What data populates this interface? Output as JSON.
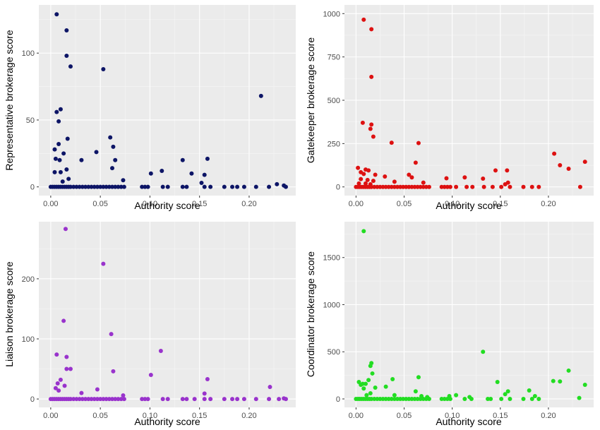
{
  "chart_data": [
    {
      "type": "scatter",
      "xlabel": "Authority score",
      "ylabel": "Representative brokerage score",
      "xlim": [
        -0.012,
        0.247
      ],
      "ylim": [
        -6.5,
        136
      ],
      "xticks": [
        "0.00",
        "0.05",
        "0.10",
        "0.15",
        "0.20"
      ],
      "xtick_values": [
        0,
        0.05,
        0.1,
        0.15,
        0.2
      ],
      "yticks": [
        "0",
        "50",
        "100"
      ],
      "ytick_values": [
        0,
        50,
        100
      ],
      "grid": true,
      "background": "#ebebeb",
      "color": "#0d1566",
      "points": [
        [
          0.006,
          129
        ],
        [
          0.016,
          117
        ],
        [
          0.016,
          98
        ],
        [
          0.02,
          90
        ],
        [
          0.053,
          88
        ],
        [
          0.212,
          68
        ],
        [
          0.01,
          58
        ],
        [
          0.006,
          56
        ],
        [
          0.008,
          49
        ],
        [
          0.017,
          36
        ],
        [
          0.06,
          37
        ],
        [
          0.063,
          30
        ],
        [
          0.008,
          32
        ],
        [
          0.004,
          28
        ],
        [
          0.013,
          25
        ],
        [
          0.046,
          26
        ],
        [
          0.005,
          21
        ],
        [
          0.009,
          20
        ],
        [
          0.031,
          20
        ],
        [
          0.065,
          20
        ],
        [
          0.133,
          20
        ],
        [
          0.158,
          21
        ],
        [
          0.016,
          13
        ],
        [
          0.004,
          11
        ],
        [
          0.01,
          11
        ],
        [
          0.112,
          12
        ],
        [
          0.062,
          14
        ],
        [
          0.101,
          10
        ],
        [
          0.142,
          10
        ],
        [
          0.155,
          9
        ],
        [
          0.018,
          6
        ],
        [
          0.012,
          4
        ],
        [
          0.073,
          5
        ],
        [
          0.152,
          3
        ],
        [
          0.235,
          1
        ],
        [
          0.228,
          2
        ],
        [
          0.0,
          0
        ],
        [
          0.002,
          0
        ],
        [
          0.004,
          0
        ],
        [
          0.006,
          0
        ],
        [
          0.008,
          0
        ],
        [
          0.01,
          0
        ],
        [
          0.012,
          0
        ],
        [
          0.014,
          0
        ],
        [
          0.016,
          0
        ],
        [
          0.018,
          0
        ],
        [
          0.02,
          0
        ],
        [
          0.023,
          0
        ],
        [
          0.026,
          0
        ],
        [
          0.029,
          0
        ],
        [
          0.032,
          0
        ],
        [
          0.035,
          0
        ],
        [
          0.038,
          0
        ],
        [
          0.041,
          0
        ],
        [
          0.044,
          0
        ],
        [
          0.047,
          0
        ],
        [
          0.05,
          0
        ],
        [
          0.053,
          0
        ],
        [
          0.056,
          0
        ],
        [
          0.059,
          0
        ],
        [
          0.062,
          0
        ],
        [
          0.065,
          0
        ],
        [
          0.068,
          0
        ],
        [
          0.071,
          0
        ],
        [
          0.074,
          0
        ],
        [
          0.092,
          0
        ],
        [
          0.095,
          0
        ],
        [
          0.098,
          0
        ],
        [
          0.113,
          0
        ],
        [
          0.118,
          0
        ],
        [
          0.133,
          0
        ],
        [
          0.137,
          0
        ],
        [
          0.155,
          0
        ],
        [
          0.161,
          0
        ],
        [
          0.175,
          0
        ],
        [
          0.183,
          0
        ],
        [
          0.188,
          0
        ],
        [
          0.195,
          0
        ],
        [
          0.207,
          0
        ],
        [
          0.22,
          0
        ],
        [
          0.237,
          0
        ]
      ]
    },
    {
      "type": "scatter",
      "xlabel": "Authority score",
      "ylabel": "Gatekeeper brokerage score",
      "xlim": [
        -0.012,
        0.247
      ],
      "ylim": [
        -50,
        1050
      ],
      "xticks": [
        "0.00",
        "0.05",
        "0.10",
        "0.15",
        "0.20"
      ],
      "xtick_values": [
        0,
        0.05,
        0.1,
        0.15,
        0.2
      ],
      "yticks": [
        "0",
        "250",
        "500",
        "750",
        "1000"
      ],
      "ytick_values": [
        0,
        250,
        500,
        750,
        1000
      ],
      "grid": true,
      "background": "#ebebeb",
      "color": "#dd1111",
      "points": [
        [
          0.008,
          965
        ],
        [
          0.016,
          910
        ],
        [
          0.016,
          635
        ],
        [
          0.007,
          370
        ],
        [
          0.016,
          360
        ],
        [
          0.015,
          335
        ],
        [
          0.018,
          290
        ],
        [
          0.037,
          255
        ],
        [
          0.065,
          253
        ],
        [
          0.206,
          192
        ],
        [
          0.238,
          145
        ],
        [
          0.212,
          125
        ],
        [
          0.221,
          105
        ],
        [
          0.062,
          140
        ],
        [
          0.01,
          100
        ],
        [
          0.013,
          95
        ],
        [
          0.002,
          110
        ],
        [
          0.005,
          85
        ],
        [
          0.008,
          75
        ],
        [
          0.02,
          70
        ],
        [
          0.03,
          60
        ],
        [
          0.055,
          70
        ],
        [
          0.058,
          55
        ],
        [
          0.145,
          95
        ],
        [
          0.157,
          95
        ],
        [
          0.094,
          50
        ],
        [
          0.113,
          55
        ],
        [
          0.132,
          48
        ],
        [
          0.005,
          45
        ],
        [
          0.012,
          40
        ],
        [
          0.018,
          35
        ],
        [
          0.04,
          30
        ],
        [
          0.07,
          25
        ],
        [
          0.158,
          25
        ],
        [
          0.155,
          15
        ],
        [
          0.003,
          20
        ],
        [
          0.01,
          20
        ],
        [
          0.015,
          15
        ],
        [
          0.0,
          0
        ],
        [
          0.002,
          0
        ],
        [
          0.004,
          0
        ],
        [
          0.006,
          0
        ],
        [
          0.008,
          0
        ],
        [
          0.01,
          0
        ],
        [
          0.012,
          0
        ],
        [
          0.014,
          0
        ],
        [
          0.016,
          0
        ],
        [
          0.019,
          0
        ],
        [
          0.022,
          0
        ],
        [
          0.025,
          0
        ],
        [
          0.028,
          0
        ],
        [
          0.031,
          0
        ],
        [
          0.034,
          0
        ],
        [
          0.037,
          0
        ],
        [
          0.04,
          0
        ],
        [
          0.043,
          0
        ],
        [
          0.046,
          0
        ],
        [
          0.049,
          0
        ],
        [
          0.052,
          0
        ],
        [
          0.055,
          0
        ],
        [
          0.058,
          0
        ],
        [
          0.061,
          0
        ],
        [
          0.064,
          0
        ],
        [
          0.067,
          0
        ],
        [
          0.07,
          0
        ],
        [
          0.073,
          0
        ],
        [
          0.076,
          0
        ],
        [
          0.089,
          0
        ],
        [
          0.092,
          0
        ],
        [
          0.095,
          0
        ],
        [
          0.098,
          0
        ],
        [
          0.104,
          0
        ],
        [
          0.115,
          0
        ],
        [
          0.121,
          0
        ],
        [
          0.133,
          0
        ],
        [
          0.142,
          0
        ],
        [
          0.151,
          0
        ],
        [
          0.16,
          0
        ],
        [
          0.174,
          0
        ],
        [
          0.183,
          0
        ],
        [
          0.19,
          0
        ],
        [
          0.233,
          0
        ]
      ]
    },
    {
      "type": "scatter",
      "xlabel": "Authority score",
      "ylabel": "Liaison brokerage score",
      "xlim": [
        -0.012,
        0.247
      ],
      "ylim": [
        -14,
        295
      ],
      "xticks": [
        "0.00",
        "0.05",
        "0.10",
        "0.15",
        "0.20"
      ],
      "xtick_values": [
        0,
        0.05,
        0.1,
        0.15,
        0.2
      ],
      "yticks": [
        "0",
        "100",
        "200"
      ],
      "ytick_values": [
        0,
        100,
        200
      ],
      "grid": true,
      "background": "#ebebeb",
      "color": "#9933cc",
      "points": [
        [
          0.015,
          283
        ],
        [
          0.053,
          225
        ],
        [
          0.013,
          130
        ],
        [
          0.061,
          108
        ],
        [
          0.111,
          80
        ],
        [
          0.006,
          74
        ],
        [
          0.016,
          70
        ],
        [
          0.016,
          50
        ],
        [
          0.02,
          50
        ],
        [
          0.063,
          46
        ],
        [
          0.101,
          40
        ],
        [
          0.01,
          32
        ],
        [
          0.158,
          33
        ],
        [
          0.007,
          26
        ],
        [
          0.014,
          22
        ],
        [
          0.047,
          16
        ],
        [
          0.005,
          18
        ],
        [
          0.008,
          14
        ],
        [
          0.221,
          20
        ],
        [
          0.031,
          10
        ],
        [
          0.155,
          9
        ],
        [
          0.073,
          6
        ],
        [
          0.235,
          1
        ],
        [
          0.0,
          0
        ],
        [
          0.002,
          0
        ],
        [
          0.004,
          0
        ],
        [
          0.006,
          0
        ],
        [
          0.008,
          0
        ],
        [
          0.01,
          0
        ],
        [
          0.012,
          0
        ],
        [
          0.014,
          0
        ],
        [
          0.016,
          0
        ],
        [
          0.018,
          0
        ],
        [
          0.02,
          0
        ],
        [
          0.023,
          0
        ],
        [
          0.026,
          0
        ],
        [
          0.029,
          0
        ],
        [
          0.032,
          0
        ],
        [
          0.035,
          0
        ],
        [
          0.038,
          0
        ],
        [
          0.041,
          0
        ],
        [
          0.044,
          0
        ],
        [
          0.047,
          0
        ],
        [
          0.05,
          0
        ],
        [
          0.053,
          0
        ],
        [
          0.056,
          0
        ],
        [
          0.059,
          0
        ],
        [
          0.062,
          0
        ],
        [
          0.065,
          0
        ],
        [
          0.068,
          0
        ],
        [
          0.071,
          0
        ],
        [
          0.074,
          0
        ],
        [
          0.092,
          0
        ],
        [
          0.095,
          0
        ],
        [
          0.098,
          0
        ],
        [
          0.113,
          0
        ],
        [
          0.118,
          0
        ],
        [
          0.133,
          0
        ],
        [
          0.137,
          0
        ],
        [
          0.145,
          0
        ],
        [
          0.155,
          0
        ],
        [
          0.161,
          0
        ],
        [
          0.175,
          0
        ],
        [
          0.183,
          0
        ],
        [
          0.188,
          0
        ],
        [
          0.195,
          0
        ],
        [
          0.207,
          0
        ],
        [
          0.22,
          0
        ],
        [
          0.23,
          0
        ],
        [
          0.237,
          0
        ]
      ]
    },
    {
      "type": "scatter",
      "xlabel": "Authority score",
      "ylabel": "Coordinator brokerage score",
      "xlim": [
        -0.012,
        0.247
      ],
      "ylim": [
        -90,
        1880
      ],
      "xticks": [
        "0.00",
        "0.05",
        "0.10",
        "0.15",
        "0.20"
      ],
      "xtick_values": [
        0,
        0.05,
        0.1,
        0.15,
        0.2
      ],
      "yticks": [
        "0",
        "500",
        "1000",
        "1500"
      ],
      "ytick_values": [
        0,
        500,
        1000,
        1500
      ],
      "grid": true,
      "background": "#ebebeb",
      "color": "#22dd22",
      "points": [
        [
          0.008,
          1780
        ],
        [
          0.132,
          500
        ],
        [
          0.016,
          380
        ],
        [
          0.015,
          350
        ],
        [
          0.221,
          300
        ],
        [
          0.017,
          270
        ],
        [
          0.065,
          230
        ],
        [
          0.038,
          210
        ],
        [
          0.013,
          200
        ],
        [
          0.205,
          190
        ],
        [
          0.212,
          185
        ],
        [
          0.147,
          180
        ],
        [
          0.238,
          150
        ],
        [
          0.003,
          180
        ],
        [
          0.005,
          150
        ],
        [
          0.007,
          160
        ],
        [
          0.01,
          160
        ],
        [
          0.031,
          130
        ],
        [
          0.02,
          120
        ],
        [
          0.008,
          110
        ],
        [
          0.18,
          90
        ],
        [
          0.062,
          80
        ],
        [
          0.158,
          80
        ],
        [
          0.155,
          50
        ],
        [
          0.186,
          30
        ],
        [
          0.015,
          60
        ],
        [
          0.011,
          40
        ],
        [
          0.04,
          40
        ],
        [
          0.068,
          30
        ],
        [
          0.097,
          30
        ],
        [
          0.104,
          40
        ],
        [
          0.118,
          20
        ],
        [
          0.074,
          20
        ],
        [
          0.232,
          10
        ],
        [
          0.0,
          0
        ],
        [
          0.002,
          0
        ],
        [
          0.004,
          0
        ],
        [
          0.006,
          0
        ],
        [
          0.008,
          0
        ],
        [
          0.01,
          0
        ],
        [
          0.012,
          0
        ],
        [
          0.014,
          0
        ],
        [
          0.016,
          0
        ],
        [
          0.019,
          0
        ],
        [
          0.022,
          0
        ],
        [
          0.025,
          0
        ],
        [
          0.028,
          0
        ],
        [
          0.031,
          0
        ],
        [
          0.034,
          0
        ],
        [
          0.037,
          0
        ],
        [
          0.04,
          0
        ],
        [
          0.043,
          0
        ],
        [
          0.046,
          0
        ],
        [
          0.049,
          0
        ],
        [
          0.052,
          0
        ],
        [
          0.055,
          0
        ],
        [
          0.058,
          0
        ],
        [
          0.061,
          0
        ],
        [
          0.064,
          0
        ],
        [
          0.067,
          0
        ],
        [
          0.07,
          0
        ],
        [
          0.073,
          0
        ],
        [
          0.076,
          0
        ],
        [
          0.089,
          0
        ],
        [
          0.092,
          0
        ],
        [
          0.095,
          0
        ],
        [
          0.098,
          0
        ],
        [
          0.113,
          0
        ],
        [
          0.12,
          0
        ],
        [
          0.137,
          0
        ],
        [
          0.14,
          0
        ],
        [
          0.151,
          0
        ],
        [
          0.16,
          0
        ],
        [
          0.174,
          0
        ],
        [
          0.183,
          0
        ],
        [
          0.19,
          0
        ]
      ]
    }
  ]
}
